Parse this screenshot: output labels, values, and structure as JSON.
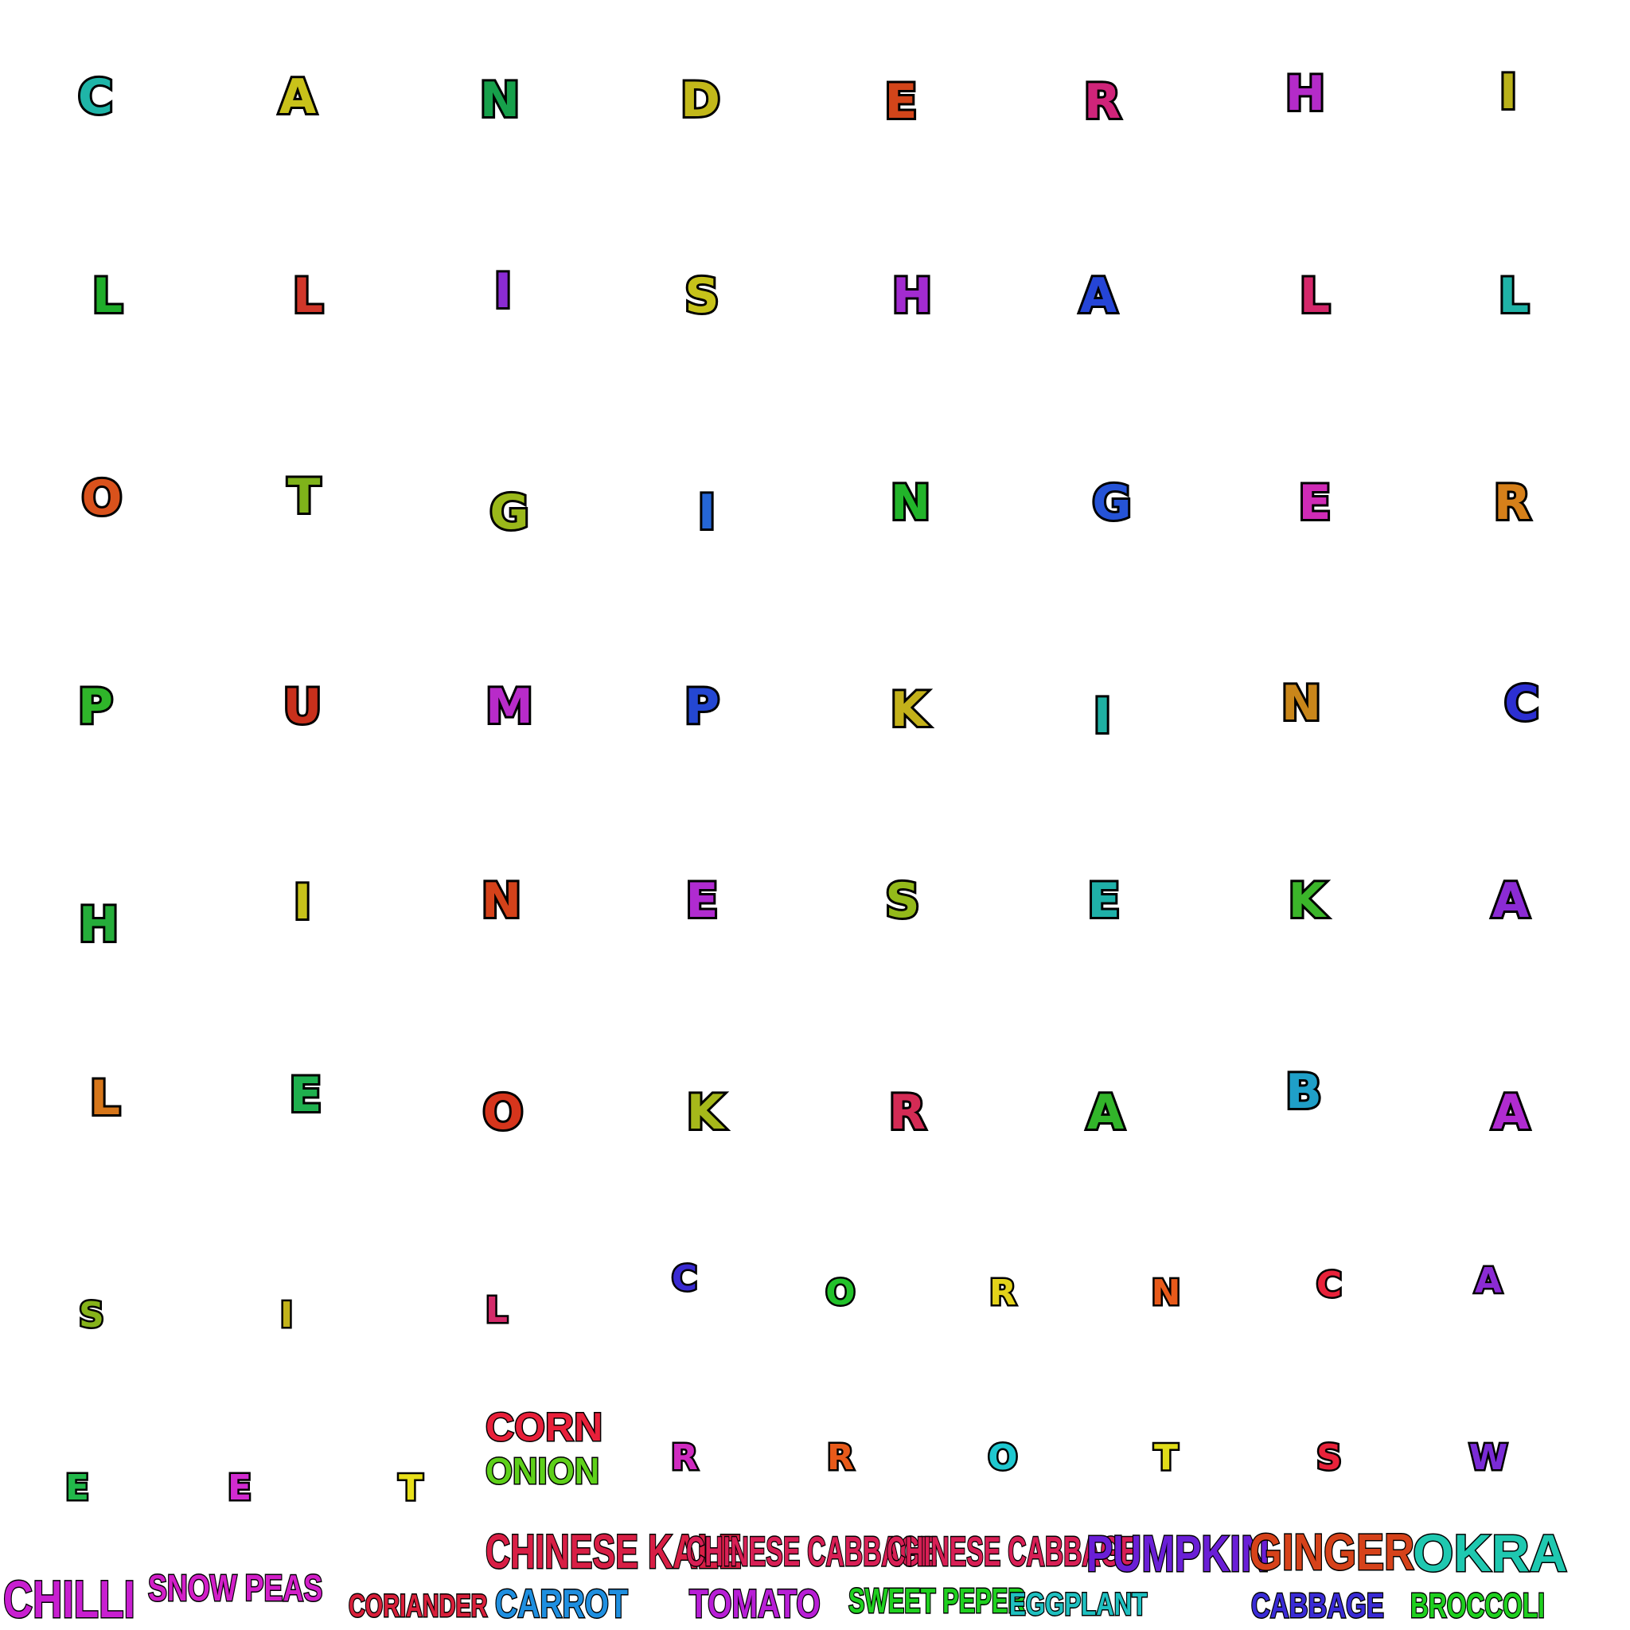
{
  "grid": {
    "rows": [
      {
        "cells": [
          {
            "char": "C",
            "color": "#1fb5a8"
          },
          {
            "char": "A",
            "color": "#c9c21a"
          },
          {
            "char": "N",
            "color": "#17a04b"
          },
          {
            "char": "D",
            "color": "#c2b81a"
          },
          {
            "char": "E",
            "color": "#d2451a"
          },
          {
            "char": "R",
            "color": "#d0247a"
          },
          {
            "char": "H",
            "color": "#b42bc9"
          },
          {
            "char": "I",
            "color": "#b9b11a"
          }
        ]
      },
      {
        "cells": [
          {
            "char": "L",
            "color": "#1fad2a"
          },
          {
            "char": "L",
            "color": "#d1372a"
          },
          {
            "char": "I",
            "color": "#8b2bd4"
          },
          {
            "char": "S",
            "color": "#c6c21a"
          },
          {
            "char": "H",
            "color": "#a22bd0"
          },
          {
            "char": "A",
            "color": "#2545d6"
          },
          {
            "char": "L",
            "color": "#d4276a"
          },
          {
            "char": "L",
            "color": "#1fb3a6"
          }
        ]
      },
      {
        "cells": [
          {
            "char": "O",
            "color": "#d9521c"
          },
          {
            "char": "T",
            "color": "#7fb31a"
          },
          {
            "char": "G",
            "color": "#9ab81a"
          },
          {
            "char": "I",
            "color": "#2566d6"
          },
          {
            "char": "N",
            "color": "#22b42a"
          },
          {
            "char": "G",
            "color": "#2553d6"
          },
          {
            "char": "E",
            "color": "#cf2bb6"
          },
          {
            "char": "R",
            "color": "#d6801a"
          }
        ]
      },
      {
        "cells": [
          {
            "char": "P",
            "color": "#2fb52a"
          },
          {
            "char": "U",
            "color": "#c8301c"
          },
          {
            "char": "M",
            "color": "#b82bc9"
          },
          {
            "char": "P",
            "color": "#2447d2"
          },
          {
            "char": "K",
            "color": "#c3b11a"
          },
          {
            "char": "I",
            "color": "#1fb0a2"
          },
          {
            "char": "N",
            "color": "#c9861a"
          },
          {
            "char": "C",
            "color": "#2c2fd2"
          }
        ]
      },
      {
        "cells": [
          {
            "char": "H",
            "color": "#25ad3a"
          },
          {
            "char": "I",
            "color": "#c8c21a"
          },
          {
            "char": "N",
            "color": "#d4421a"
          },
          {
            "char": "E",
            "color": "#b02bd0"
          },
          {
            "char": "S",
            "color": "#93b91a"
          },
          {
            "char": "E",
            "color": "#1fb0a8"
          },
          {
            "char": "K",
            "color": "#3bb52a"
          },
          {
            "char": "A",
            "color": "#8b2bd4"
          }
        ]
      },
      {
        "cells": [
          {
            "char": "L",
            "color": "#d6761a"
          },
          {
            "char": "E",
            "color": "#1fb04e"
          },
          {
            "char": "O",
            "color": "#d6351c"
          },
          {
            "char": "K",
            "color": "#a6b81a"
          },
          {
            "char": "R",
            "color": "#d42b55"
          },
          {
            "char": "A",
            "color": "#32b52a"
          },
          {
            "char": "B",
            "color": "#1f9fc8"
          },
          {
            "char": "A",
            "color": "#b02bd0"
          }
        ]
      },
      {
        "cells": [
          {
            "char": "S",
            "color": "#86b31a"
          },
          {
            "char": "I",
            "color": "#c2b31a"
          },
          {
            "char": "L",
            "color": "#d42b6a"
          },
          {
            "char": "C",
            "color": "#3a2bd2"
          },
          {
            "char": "O",
            "color": "#22c22a"
          },
          {
            "char": "R",
            "color": "#e3d21a"
          },
          {
            "char": "N",
            "color": "#e85a1a"
          },
          {
            "char": "C",
            "color": "#e8223a"
          },
          {
            "char": "A",
            "color": "#8b2bd4"
          }
        ]
      },
      {
        "cells": [
          {
            "char": "E",
            "color": "#22b84a"
          },
          {
            "char": "E",
            "color": "#d12bd0"
          },
          {
            "char": "T",
            "color": "#e8e01a"
          },
          {
            "char": "R",
            "color": "#cf2bc0"
          },
          {
            "char": "R",
            "color": "#e85a1a"
          },
          {
            "char": "O",
            "color": "#1fc8d0"
          },
          {
            "char": "T",
            "color": "#e0dc1a"
          },
          {
            "char": "S",
            "color": "#e8223a"
          },
          {
            "char": "W",
            "color": "#7a2bd6"
          }
        ]
      }
    ]
  },
  "word_list": [
    {
      "text": "CORN",
      "color": "#e8203a"
    },
    {
      "text": "ONION",
      "color": "#5ed01a"
    },
    {
      "text": "CHINESE KALE",
      "color": "#d81f45"
    },
    {
      "text": "CHINESE CABBAGE",
      "color": "#d81f55"
    },
    {
      "text": "CHINESE CABBAGE",
      "color": "#d81f55"
    },
    {
      "text": "PUMPKIN",
      "color": "#6a1fd6"
    },
    {
      "text": "GINGER",
      "color": "#d6421a"
    },
    {
      "text": "OKRA",
      "color": "#1fc8b0"
    },
    {
      "text": "CHILLI",
      "color": "#c81fd0"
    },
    {
      "text": "SNOW PEAS",
      "color": "#d21fc8"
    },
    {
      "text": "CORIANDER",
      "color": "#d81f3a"
    },
    {
      "text": "CARROT",
      "color": "#1f8fe0"
    },
    {
      "text": "TOMATO",
      "color": "#b81fd6"
    },
    {
      "text": "SWEET PEPER",
      "color": "#1fd01f"
    },
    {
      "text": "EGGPLANT",
      "color": "#1fc0c0"
    },
    {
      "text": "CABBAGE",
      "color": "#3a2bd6"
    },
    {
      "text": "BROCCOLI",
      "color": "#1fd01f"
    }
  ]
}
